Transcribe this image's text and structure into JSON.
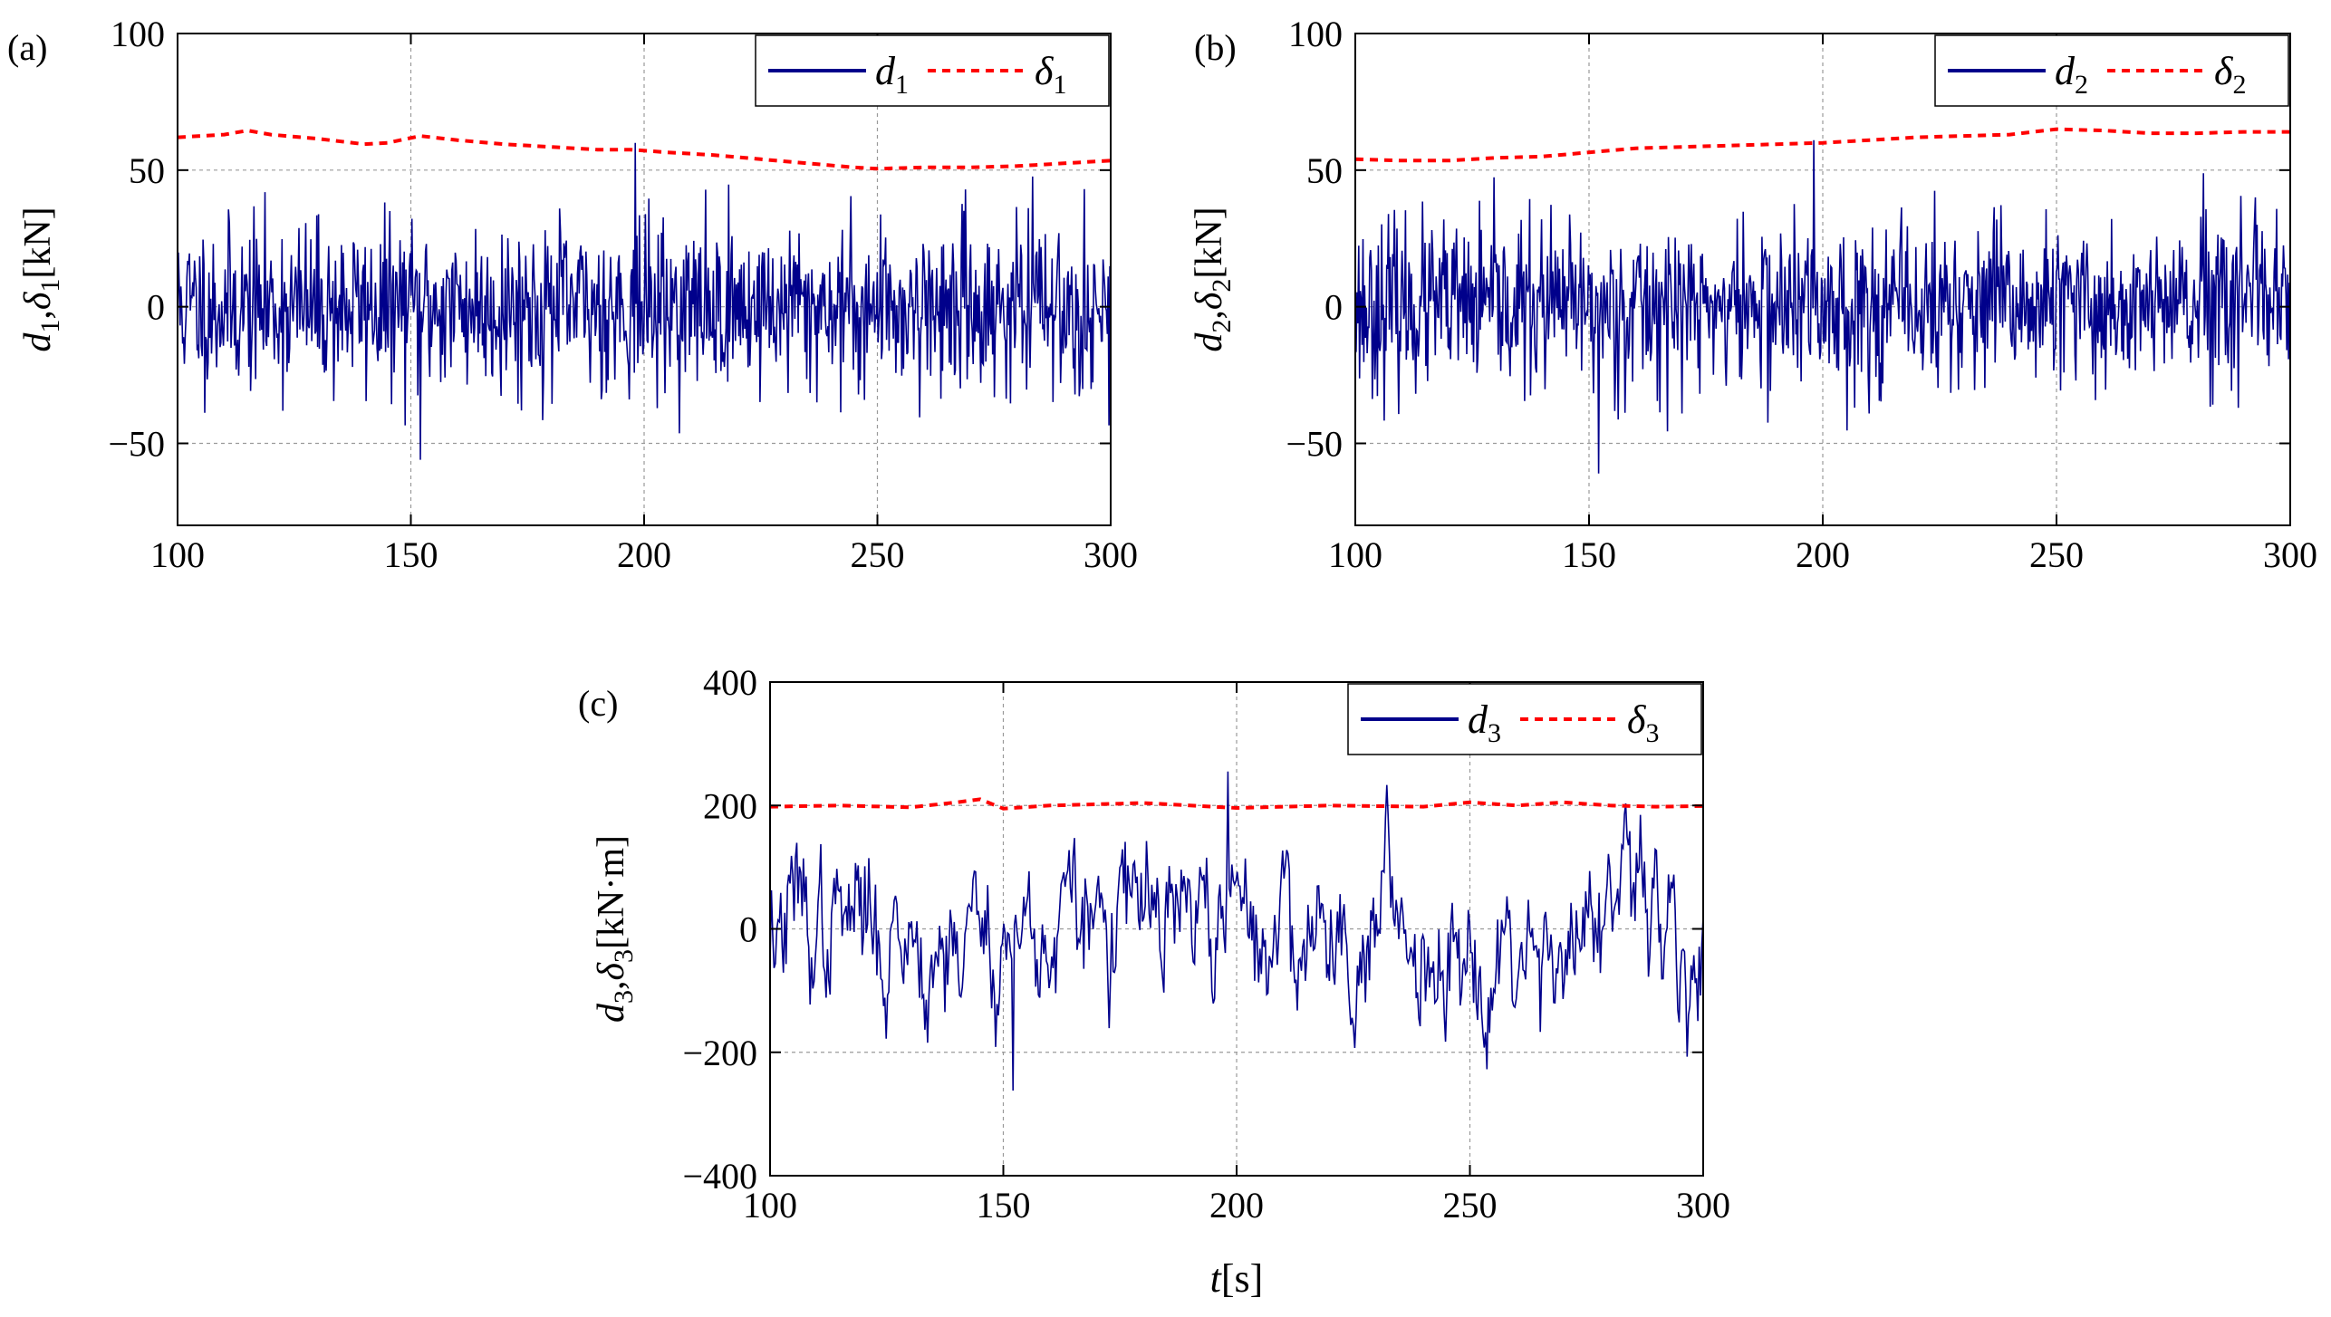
{
  "chart_data": [
    {
      "type": "line",
      "panel_label": "(a)",
      "xlim": [
        100,
        300
      ],
      "ylim": [
        -80,
        100
      ],
      "xticks": [
        100,
        150,
        200,
        250,
        300
      ],
      "xtick_labels": [
        "100",
        "150",
        "200",
        "250",
        "300"
      ],
      "yticks": [
        100,
        50,
        0,
        -50
      ],
      "ytick_labels": [
        "100",
        "50",
        "0",
        "−50"
      ],
      "grid": true,
      "legend_position": "top-right",
      "ylabel": {
        "var": "d",
        "sub": "1",
        "sep": ",",
        "var2": "δ",
        "sub2": "1",
        "unit": "[kN]"
      },
      "xlabel": null,
      "series": [
        {
          "name": "d",
          "name_sub": "1",
          "style": "solid",
          "color": "#00008b",
          "kind": "noise",
          "amp": 28,
          "peak": 60,
          "min_peak": -56,
          "n": 1100,
          "seed": 11
        },
        {
          "name": "δ",
          "name_sub": "1",
          "style": "dashed",
          "color": "#ff0000",
          "x": [
            100,
            110,
            115,
            120,
            130,
            140,
            145,
            152,
            160,
            170,
            180,
            190,
            197,
            205,
            215,
            225,
            235,
            245,
            250,
            260,
            270,
            280,
            290,
            300
          ],
          "y": [
            62,
            63,
            64.5,
            63,
            61.5,
            59.5,
            60,
            62.5,
            61,
            59.5,
            58.5,
            57.5,
            57.5,
            56.5,
            55.5,
            54,
            52.5,
            51,
            50.5,
            51,
            51,
            51.5,
            52.5,
            53.5
          ]
        }
      ]
    },
    {
      "type": "line",
      "panel_label": "(b)",
      "xlim": [
        100,
        300
      ],
      "ylim": [
        -80,
        100
      ],
      "xticks": [
        100,
        150,
        200,
        250,
        300
      ],
      "xtick_labels": [
        "100",
        "150",
        "200",
        "250",
        "300"
      ],
      "yticks": [
        100,
        50,
        0,
        -50
      ],
      "ytick_labels": [
        "100",
        "50",
        "0",
        "−50"
      ],
      "grid": true,
      "legend_position": "top-right",
      "ylabel": {
        "var": "d",
        "sub": "2",
        "sep": ",",
        "var2": "δ",
        "sub2": "2",
        "unit": "[kN]"
      },
      "xlabel": null,
      "series": [
        {
          "name": "d",
          "name_sub": "2",
          "style": "solid",
          "color": "#00008b",
          "kind": "noise",
          "amp": 28,
          "peak": 61,
          "min_peak": -61,
          "n": 1100,
          "seed": 23
        },
        {
          "name": "δ",
          "name_sub": "2",
          "style": "dashed",
          "color": "#ff0000",
          "x": [
            100,
            110,
            120,
            130,
            140,
            150,
            160,
            170,
            180,
            190,
            200,
            210,
            220,
            230,
            240,
            250,
            260,
            270,
            280,
            290,
            300
          ],
          "y": [
            54,
            53.5,
            53.5,
            54.5,
            55,
            56.5,
            58,
            58.5,
            59,
            59.5,
            60,
            61,
            62,
            62.5,
            63,
            65,
            64.5,
            63.5,
            63.5,
            64,
            64
          ]
        }
      ]
    },
    {
      "type": "line",
      "panel_label": "(c)",
      "xlim": [
        100,
        300
      ],
      "ylim": [
        -400,
        400
      ],
      "xticks": [
        100,
        150,
        200,
        250,
        300
      ],
      "xtick_labels": [
        "100",
        "150",
        "200",
        "250",
        "300"
      ],
      "yticks": [
        400,
        200,
        0,
        -200,
        -400
      ],
      "ytick_labels": [
        "400",
        "200",
        "0",
        "−200",
        "−400"
      ],
      "grid": true,
      "legend_position": "top-right",
      "ylabel": {
        "var": "d",
        "sub": "3",
        "sep": ",",
        "var2": "δ",
        "sub2": "3",
        "unit": "[kN·m]"
      },
      "xlabel": {
        "var": "t",
        "unit": "[s]"
      },
      "series": [
        {
          "name": "d",
          "name_sub": "3",
          "style": "solid",
          "color": "#00008b",
          "kind": "smooth",
          "amp": 85,
          "peak": 255,
          "min_peak": -262,
          "n": 700,
          "seed": 37
        },
        {
          "name": "δ",
          "name_sub": "3",
          "style": "dashed",
          "color": "#ff0000",
          "x": [
            100,
            115,
            130,
            140,
            145,
            150,
            160,
            180,
            200,
            220,
            240,
            250,
            260,
            270,
            280,
            290,
            300
          ],
          "y": [
            198,
            200,
            197,
            205,
            210,
            195,
            200,
            204,
            196,
            200,
            198,
            205,
            200,
            205,
            200,
            198,
            199
          ]
        }
      ]
    }
  ]
}
